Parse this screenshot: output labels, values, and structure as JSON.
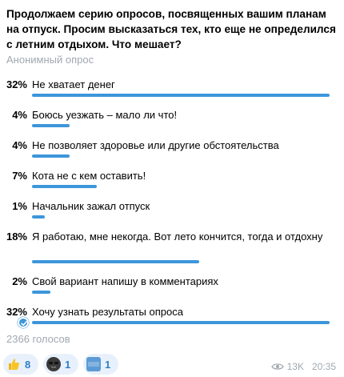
{
  "poll": {
    "question": "Продолжаем серию опросов, посвященных вашим планам на отпуск. Просим высказаться тех, кто еще не определился с летним отдыхом. Что мешает?",
    "type_label": "Анонимный опрос",
    "options": [
      {
        "pct": "32%",
        "label": "Не хватает денег",
        "fraction": 0.32
      },
      {
        "pct": "4%",
        "label": "Боюсь уезжать – мало ли что!",
        "fraction": 0.04
      },
      {
        "pct": "4%",
        "label": "Не позволяет здоровье или другие обстоятельства",
        "fraction": 0.04
      },
      {
        "pct": "7%",
        "label": "Кота не с кем оставить!",
        "fraction": 0.07
      },
      {
        "pct": "1%",
        "label": "Начальник зажал отпуск",
        "fraction": 0.01
      },
      {
        "pct": "18%",
        "label": "Я работаю, мне некогда. Вот лето кончится, тогда и отдохну",
        "fraction": 0.18
      },
      {
        "pct": "2%",
        "label": "Свой вариант напишу в комментариях",
        "fraction": 0.02
      },
      {
        "pct": "32%",
        "label": "Хочу узнать результаты опроса",
        "fraction": 0.32,
        "chosen": true
      }
    ],
    "votes_label": "2366 голосов"
  },
  "reactions": [
    {
      "icon": "thumbs-up-icon",
      "count": "8"
    },
    {
      "icon": "sunglasses-face-icon",
      "count": "1"
    },
    {
      "icon": "cool-button-icon",
      "count": "1"
    }
  ],
  "meta": {
    "views": "13K",
    "time": "20:35"
  },
  "colors": {
    "accent": "#3d96da",
    "muted": "#a0a8b0"
  }
}
